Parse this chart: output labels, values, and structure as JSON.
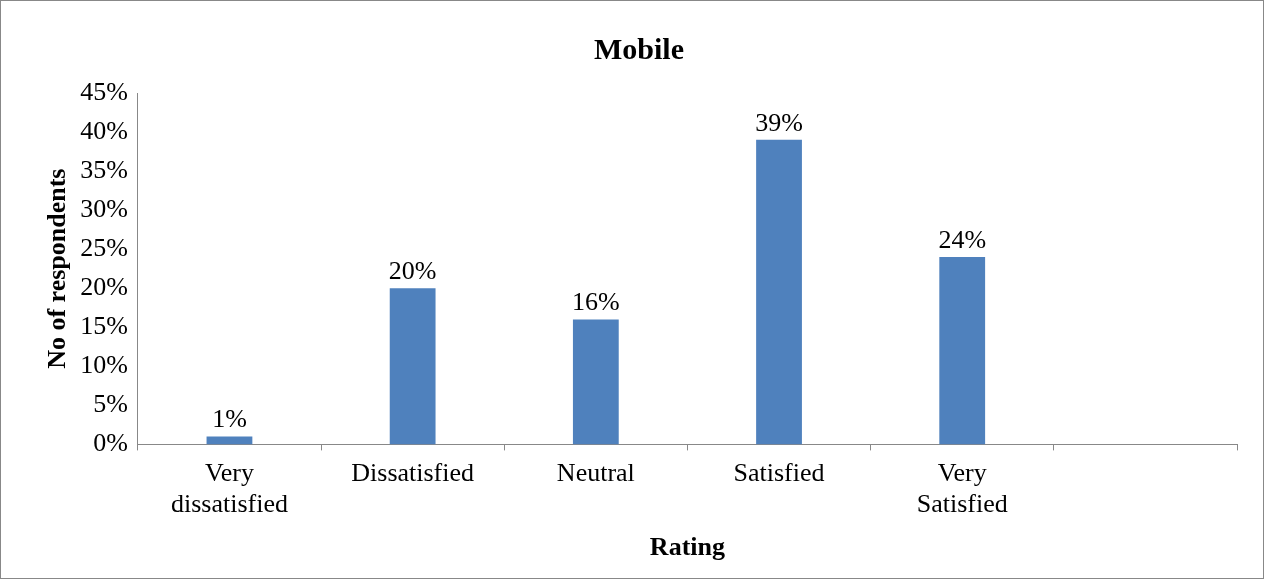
{
  "chart_data": {
    "type": "bar",
    "title": "Mobile",
    "xlabel": "Rating",
    "ylabel": "No of respondents",
    "categories": [
      "Very dissatisfied",
      "Dissatisfied",
      "Neutral",
      "Satisfied",
      "Very Satisfied",
      null
    ],
    "values": [
      1,
      20,
      16,
      39,
      24,
      null
    ],
    "value_labels": [
      "1%",
      "20%",
      "16%",
      "39%",
      "24%",
      null
    ],
    "color": "#4f81bd",
    "ylim": [
      0,
      45
    ],
    "yticks": [
      {
        "value": 0,
        "label": "0%"
      },
      {
        "value": 5,
        "label": "5%"
      },
      {
        "value": 10,
        "label": "10%"
      },
      {
        "value": 15,
        "label": "15%"
      },
      {
        "value": 20,
        "label": "20%"
      },
      {
        "value": 25,
        "label": "25%"
      },
      {
        "value": 30,
        "label": "30%"
      },
      {
        "value": 35,
        "label": "35%"
      },
      {
        "value": 40,
        "label": "40%"
      },
      {
        "value": 45,
        "label": "45%"
      }
    ],
    "grid": false,
    "legend": false
  }
}
